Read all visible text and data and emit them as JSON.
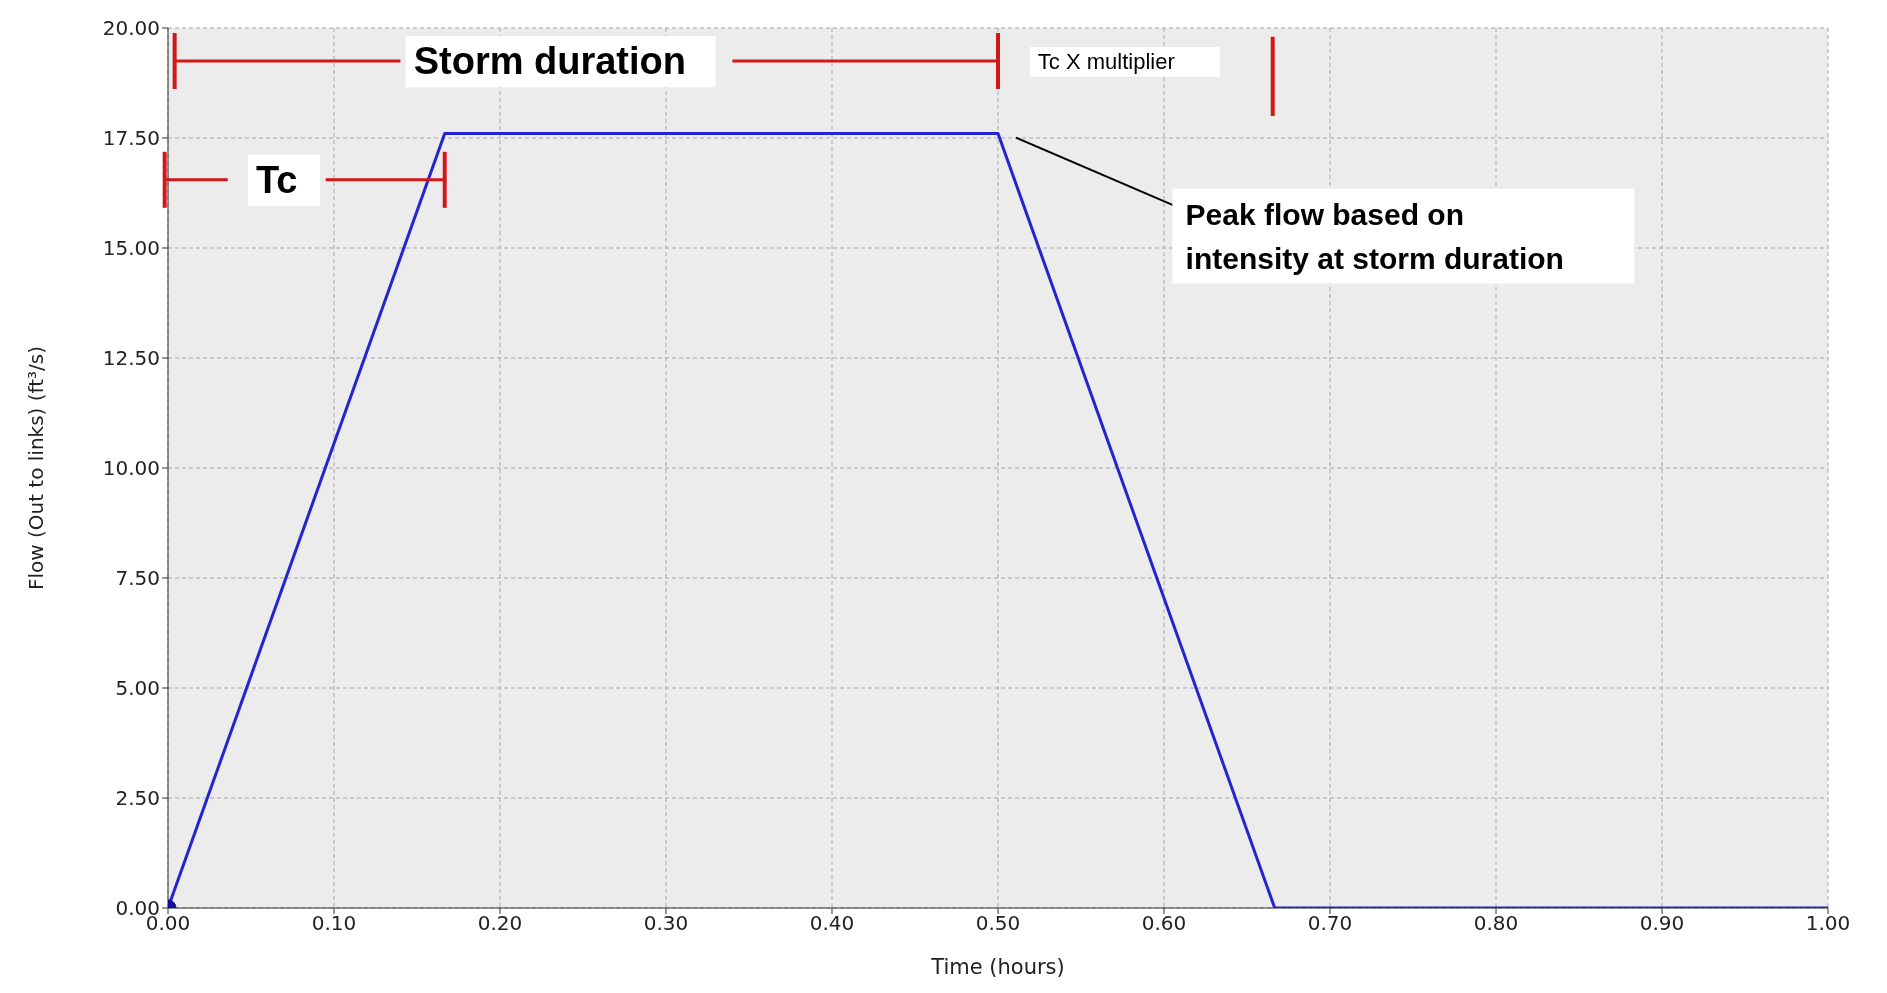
{
  "chart_data": {
    "type": "line",
    "xlabel": "Time (hours)",
    "ylabel": "Flow (Out to links) (ft³/s)",
    "x": [
      0,
      0.1667,
      0.5,
      0.6667,
      1.0
    ],
    "series": [
      {
        "color": "#2424d0",
        "values": [
          0,
          17.6,
          17.6,
          0,
          0
        ],
        "marker": "none"
      },
      {
        "type": "scatter",
        "color": "#10109a",
        "x": [
          0
        ],
        "values": [
          0
        ],
        "marker": "circle"
      }
    ],
    "xlim": [
      0,
      1
    ],
    "ylim": [
      0,
      20
    ],
    "xticks": [
      {
        "value": 0,
        "label": "0.00"
      },
      {
        "value": 0.1,
        "label": "0.10"
      },
      {
        "value": 0.2,
        "label": "0.20"
      },
      {
        "value": 0.3,
        "label": "0.30"
      },
      {
        "value": 0.4,
        "label": "0.40"
      },
      {
        "value": 0.5,
        "label": "0.50"
      },
      {
        "value": 0.6,
        "label": "0.60"
      },
      {
        "value": 0.7,
        "label": "0.70"
      },
      {
        "value": 0.8,
        "label": "0.80"
      },
      {
        "value": 0.9,
        "label": "0.90"
      },
      {
        "value": 1,
        "label": "1.00"
      }
    ],
    "yticks": [
      {
        "value": 0,
        "label": "0.00"
      },
      {
        "value": 2.5,
        "label": "2.50"
      },
      {
        "value": 5,
        "label": "5.00"
      },
      {
        "value": 7.5,
        "label": "7.50"
      },
      {
        "value": 10,
        "label": "10.00"
      },
      {
        "value": 12.5,
        "label": "12.50"
      },
      {
        "value": 15,
        "label": "15.00"
      },
      {
        "value": 17.5,
        "label": "17.50"
      },
      {
        "value": 20,
        "label": "20.00"
      }
    ],
    "grid": true,
    "annotations": [
      "Storm duration",
      "Tc",
      "Tc X multiplier",
      "Peak flow based on intensity at storm duration"
    ]
  }
}
